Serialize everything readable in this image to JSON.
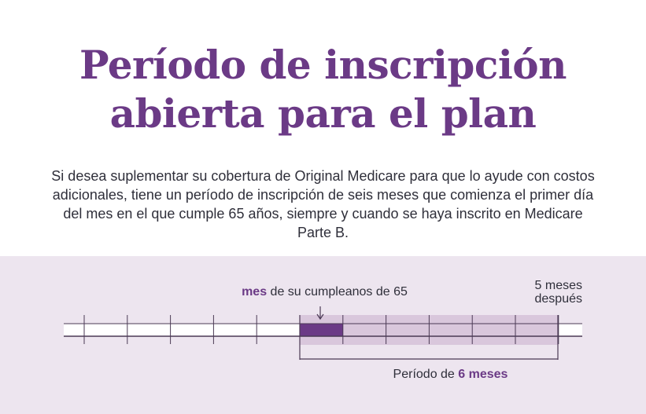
{
  "title": {
    "line1": "Período de inscripción",
    "line2": "abierta para el plan"
  },
  "description": "Si desea suplementar su cobertura de Original Medicare para que lo ayude con costos adicionales, tiene un período de inscripción de seis meses que comienza el primer día del mes en el que cumple 65 años, siempre y cuando se haya inscrito en Medicare Parte B.",
  "timeline": {
    "birthday_bold": "mes",
    "birthday_rest": " de su cumpleanos de 65",
    "after_line1": "5 meses",
    "after_line2": "después",
    "period_prefix": "Período de ",
    "period_bold": "6 meses",
    "months_before": 6,
    "months_in_period": 6,
    "colors": {
      "accent": "#6b3a86",
      "panel_bg": "#ede5ef",
      "period_fill": "#d9c7dc",
      "line": "#4b3a55"
    }
  }
}
